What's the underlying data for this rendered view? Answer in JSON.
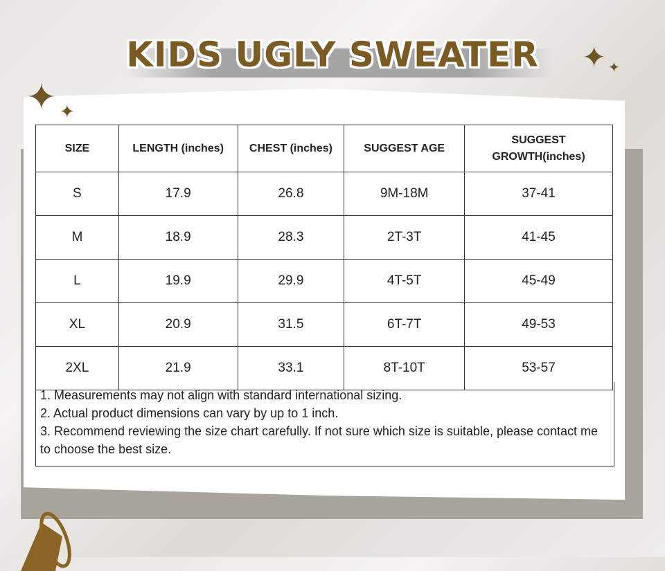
{
  "title": "KIDS UGLY SWEATER",
  "colors": {
    "accent": "#7b5b24",
    "card": "#ffffff"
  },
  "table": {
    "headers": [
      "SIZE",
      "LENGTH (inches)",
      "CHEST (inches)",
      "SUGGEST AGE",
      "SUGGEST GROWTH(inches)"
    ],
    "rows": [
      [
        "S",
        "17.9",
        "26.8",
        "9M-18M",
        "37-41"
      ],
      [
        "M",
        "18.9",
        "28.3",
        "2T-3T",
        "41-45"
      ],
      [
        "L",
        "19.9",
        "29.9",
        "4T-5T",
        "45-49"
      ],
      [
        "XL",
        "20.9",
        "31.5",
        "6T-7T",
        "49-53"
      ],
      [
        "2XL",
        "21.9",
        "33.1",
        "8T-10T",
        "53-57"
      ]
    ]
  },
  "notes": [
    "1. Measurements may not align with standard international sizing.",
    "2. Actual product dimensions can vary by up to 1 inch.",
    "3. Recommend reviewing the size chart carefully. If not sure which size is suitable, please contact me to choose the best size."
  ],
  "icons": [
    "sparkle-icon",
    "bell-icon"
  ]
}
